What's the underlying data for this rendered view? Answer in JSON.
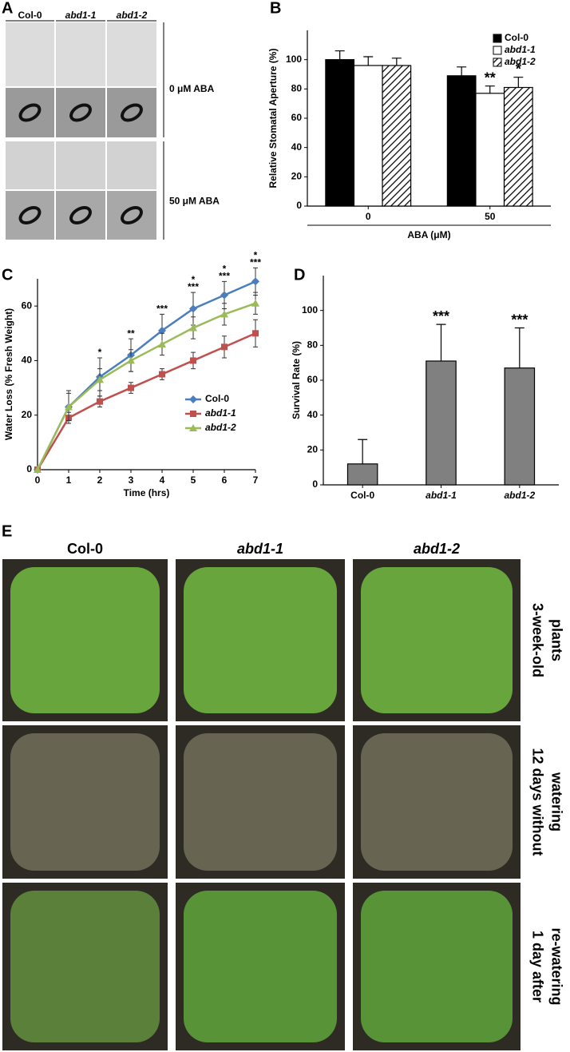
{
  "panel_labels": [
    "A",
    "B",
    "C",
    "D",
    "E"
  ],
  "panel_a": {
    "columns": [
      "Col-0",
      "abd1-1",
      "abd1-2"
    ],
    "conditions": [
      "0 μM ABA",
      "50 μM ABA"
    ]
  },
  "panel_e": {
    "columns": [
      "Col-0",
      "abd1-1",
      "abd1-2"
    ],
    "rows": [
      [
        "3-week-old",
        "plants"
      ],
      [
        "12 days without",
        "watering"
      ],
      [
        "1 day after",
        "re-watering"
      ]
    ]
  },
  "chart_data": [
    {
      "type": "bar",
      "y_label": "Relative Stomatal Aperture (%)",
      "x_label": "ABA (μM)",
      "categories": [
        "0",
        "50"
      ],
      "series": [
        {
          "name": "Col-0",
          "color": "#000000",
          "values": [
            100,
            89
          ],
          "errors": [
            6,
            6
          ]
        },
        {
          "name": "abd1-1",
          "color": "#ffffff",
          "values": [
            96,
            77
          ],
          "errors": [
            6,
            5
          ],
          "significance": [
            null,
            "**"
          ]
        },
        {
          "name": "abd1-2",
          "color": "#000000",
          "hatch": true,
          "values": [
            96,
            81
          ],
          "errors": [
            5,
            7
          ],
          "significance": [
            null,
            "*"
          ]
        }
      ],
      "ylim": [
        0,
        120
      ],
      "yticks": [
        0,
        20,
        40,
        60,
        80,
        100
      ],
      "legend": "top-right"
    },
    {
      "type": "line",
      "y_label": "Water Loss (% Fresh Weight)",
      "x_label": "Time (hrs)",
      "x": [
        0,
        1,
        2,
        3,
        4,
        5,
        6,
        7
      ],
      "xlim": [
        0,
        7
      ],
      "xticks": [
        0,
        1,
        2,
        3,
        4,
        5,
        6,
        7
      ],
      "series": [
        {
          "name": "Col-0",
          "color": "#4a7ebf",
          "marker": "diamond",
          "values": [
            0,
            23,
            34,
            42,
            51,
            59,
            64,
            69
          ],
          "errors": [
            0,
            6,
            7,
            6,
            6,
            6,
            5,
            5
          ]
        },
        {
          "name": "abd1-1",
          "color": "#c0504d",
          "marker": "square",
          "values": [
            0,
            19,
            25,
            30,
            35,
            40,
            45,
            50
          ],
          "errors": [
            0,
            2,
            2,
            2,
            2,
            3,
            4,
            5
          ],
          "significance": [
            null,
            null,
            "*",
            "**",
            "***",
            "***",
            "***",
            "***"
          ]
        },
        {
          "name": "abd1-2",
          "color": "#9bbb59",
          "marker": "triangle",
          "values": [
            0,
            23,
            33,
            40,
            46,
            52,
            57,
            61
          ],
          "errors": [
            0,
            5,
            4,
            4,
            4,
            4,
            4,
            4
          ],
          "significance": [
            null,
            null,
            null,
            null,
            null,
            "*",
            "*",
            "*"
          ]
        }
      ],
      "ylim": [
        0,
        70
      ],
      "yticks": [
        0,
        20,
        40,
        60
      ],
      "legend": "bottom-right"
    },
    {
      "type": "bar",
      "y_label": "Survival Rate (%)",
      "categories": [
        "Col-0",
        "abd1-1",
        "abd1-2"
      ],
      "values": [
        12,
        71,
        67
      ],
      "errors": [
        14,
        21,
        23
      ],
      "significance": [
        null,
        "***",
        "***"
      ],
      "color": "#808080",
      "ylim": [
        0,
        120
      ],
      "yticks": [
        0,
        20,
        40,
        60,
        80,
        100
      ]
    }
  ]
}
